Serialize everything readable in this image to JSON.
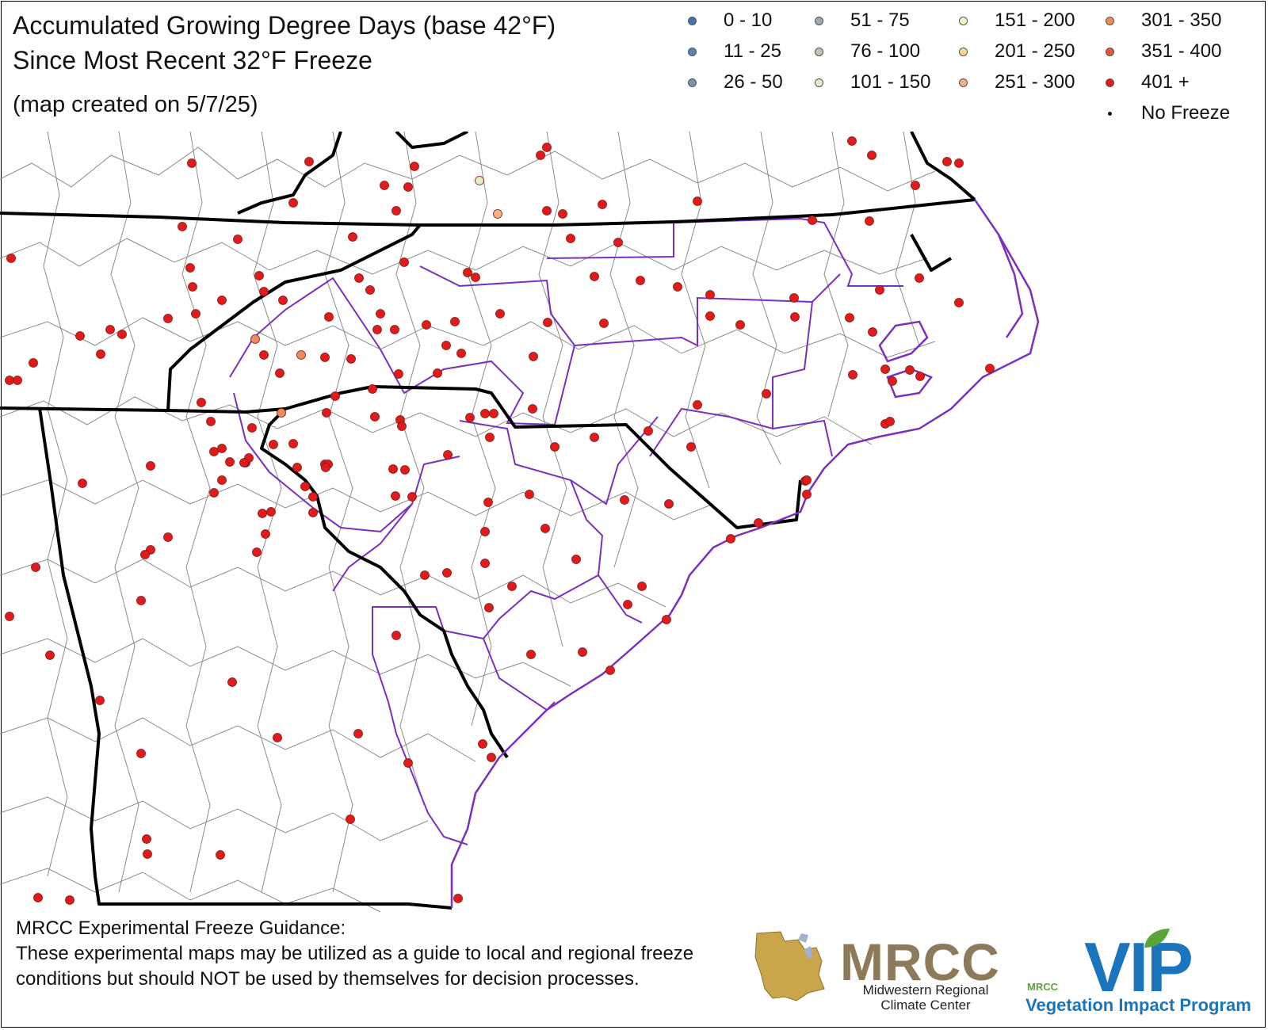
{
  "title": {
    "line1": "Accumulated Growing Degree Days (base 42°F)",
    "line2": "Since Most Recent 32°F Freeze",
    "created": "(map created on 5/7/25)"
  },
  "legend": {
    "items": [
      {
        "label": "0 - 10",
        "color": "#4a6fb5"
      },
      {
        "label": "11 - 25",
        "color": "#5b7fbf"
      },
      {
        "label": "26 - 50",
        "color": "#7a92b8"
      },
      {
        "label": "51 - 75",
        "color": "#98a8b4"
      },
      {
        "label": "76 - 100",
        "color": "#b9c7b4"
      },
      {
        "label": "101 - 150",
        "color": "#e3ecc4"
      },
      {
        "label": "151 - 200",
        "color": "#fbf5c0"
      },
      {
        "label": "201 - 250",
        "color": "#fbd89a"
      },
      {
        "label": "251 - 300",
        "color": "#f6b07f"
      },
      {
        "label": "301 - 350",
        "color": "#ef8a5c"
      },
      {
        "label": "351 - 400",
        "color": "#e8573a"
      },
      {
        "label": "401 +",
        "color": "#e31a1c"
      },
      {
        "label": "No Freeze",
        "color": "#111111"
      }
    ]
  },
  "map": {
    "colors": {
      "county_line": "#8a8a8a",
      "state_line": "#000000",
      "climate_division_line": "#7b2fbe",
      "station_outline": "#7a1a10"
    }
  },
  "disclaimer": {
    "title": "MRCC Experimental Freeze Guidance:",
    "body": "These experimental maps may be utilized as a guide to local and regional freeze conditions but should NOT be used by themselves for decision processes."
  },
  "logos": {
    "mrcc": {
      "name": "MRCC",
      "line1": "Midwestern Regional",
      "line2": "Climate Center"
    },
    "vip": {
      "name": "VIP",
      "small": "MRCC",
      "program": "Vegetation Impact Program"
    }
  }
}
